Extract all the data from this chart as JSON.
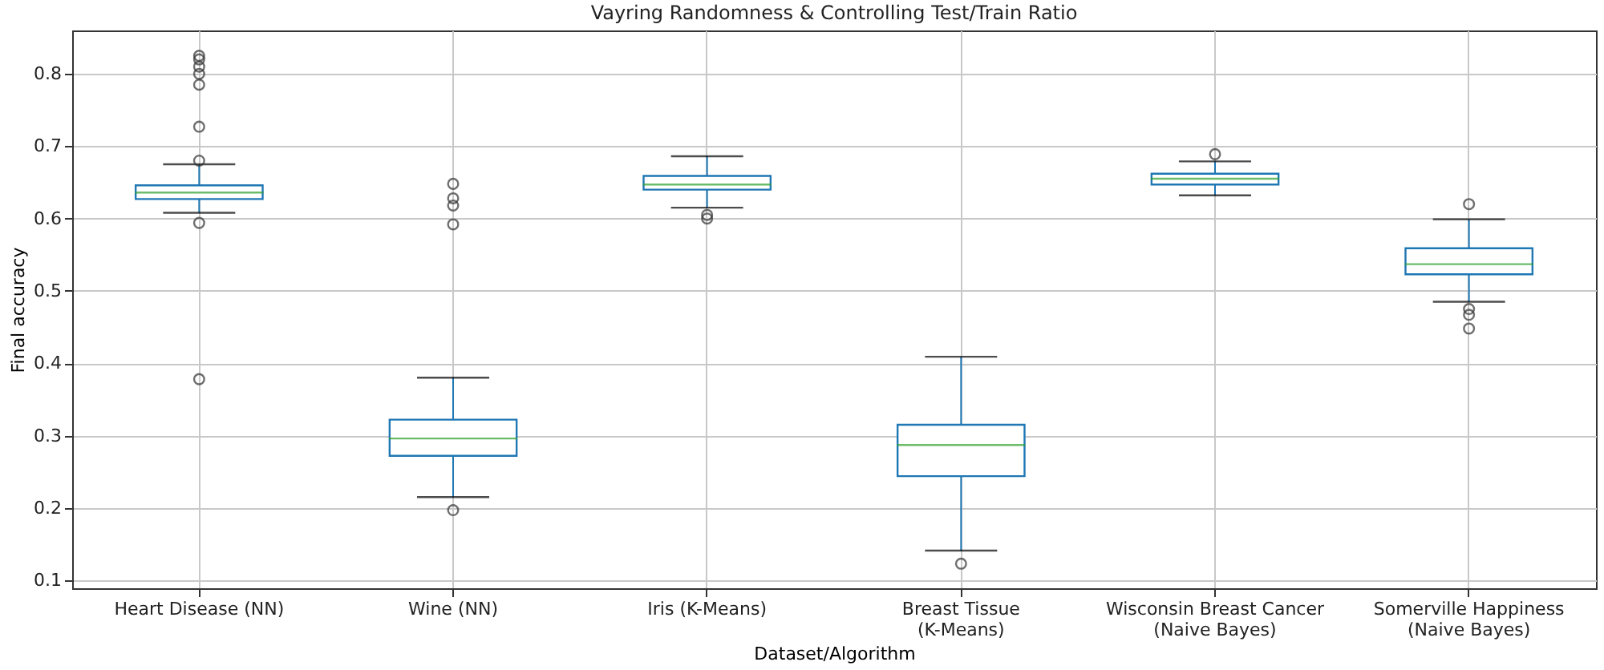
{
  "chart_data": {
    "type": "box",
    "title": "Vayring Randomness & Controlling Test/Train Ratio",
    "xlabel": "Dataset/Algorithm",
    "ylabel": "Final accuracy",
    "categories": [
      "Heart Disease (NN)",
      "Wine (NN)",
      "Iris (K-Means)",
      "Breast Tissue\n(K-Means)",
      "Wisconsin Breast Cancer\n(Naive Bayes)",
      "Somerville Happiness\n(Naive Bayes)"
    ],
    "boxes": [
      {
        "low": 0.608,
        "q1": 0.627,
        "median": 0.636,
        "q3": 0.646,
        "high": 0.675,
        "outliers": [
          0.825,
          0.82,
          0.81,
          0.8,
          0.785,
          0.727,
          0.68,
          0.594,
          0.378
        ]
      },
      {
        "low": 0.215,
        "q1": 0.272,
        "median": 0.296,
        "q3": 0.322,
        "high": 0.38,
        "outliers": [
          0.648,
          0.628,
          0.618,
          0.592,
          0.197
        ]
      },
      {
        "low": 0.615,
        "q1": 0.64,
        "median": 0.647,
        "q3": 0.659,
        "high": 0.686,
        "outliers": [
          0.605,
          0.6
        ]
      },
      {
        "low": 0.141,
        "q1": 0.244,
        "median": 0.287,
        "q3": 0.315,
        "high": 0.409,
        "outliers": [
          0.123
        ]
      },
      {
        "low": 0.632,
        "q1": 0.647,
        "median": 0.655,
        "q3": 0.662,
        "high": 0.679,
        "outliers": [
          0.689
        ]
      },
      {
        "low": 0.485,
        "q1": 0.523,
        "median": 0.537,
        "q3": 0.559,
        "high": 0.599,
        "outliers": [
          0.62,
          0.475,
          0.467,
          0.448
        ]
      }
    ],
    "color": "#1f77b4",
    "ylim": [
      0.089,
      0.86
    ],
    "yticks": [
      0.1,
      0.2,
      0.3,
      0.4,
      0.5,
      0.6,
      0.7,
      0.8
    ],
    "grid": true
  }
}
